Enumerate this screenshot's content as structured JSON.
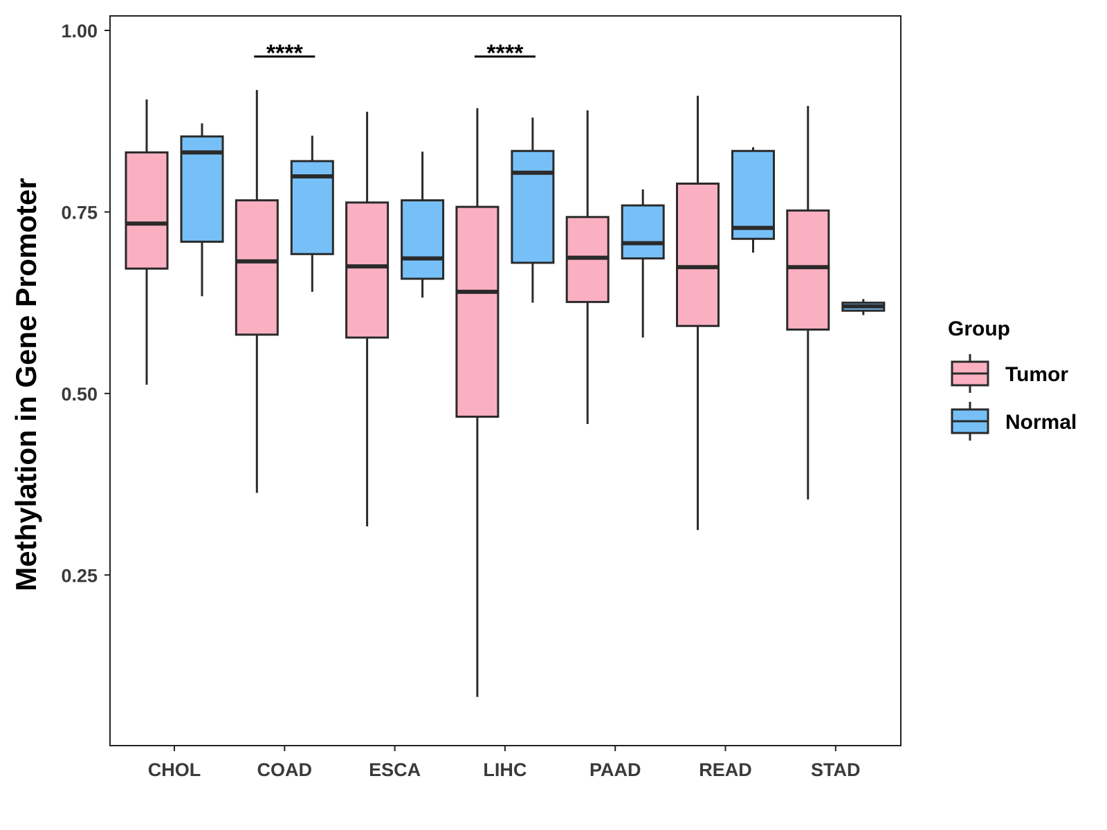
{
  "chart_data": {
    "type": "boxplot",
    "title": "",
    "xlabel": "",
    "ylabel": "Methylation in Gene Promoter",
    "ylim": [
      0.015,
      1.02
    ],
    "yticks": [
      0.25,
      0.5,
      0.75,
      1.0
    ],
    "ytick_labels": [
      "0.25",
      "0.50",
      "0.75",
      "1.00"
    ],
    "categories": [
      "CHOL",
      "COAD",
      "ESCA",
      "LIHC",
      "PAAD",
      "READ",
      "STAD"
    ],
    "legend": {
      "title": "Group",
      "position": "right",
      "entries": [
        {
          "name": "Tumor",
          "color": "#FBB0C2"
        },
        {
          "name": "Normal",
          "color": "#76C0F7"
        }
      ]
    },
    "series": [
      {
        "name": "Tumor",
        "color": "#FBB0C2",
        "boxes": [
          {
            "category": "CHOL",
            "min": 0.512,
            "q1": 0.672,
            "median": 0.734,
            "q3": 0.832,
            "max": 0.905
          },
          {
            "category": "COAD",
            "min": 0.363,
            "q1": 0.581,
            "median": 0.682,
            "q3": 0.766,
            "max": 0.918
          },
          {
            "category": "ESCA",
            "min": 0.317,
            "q1": 0.577,
            "median": 0.675,
            "q3": 0.763,
            "max": 0.888
          },
          {
            "category": "LIHC",
            "min": 0.082,
            "q1": 0.468,
            "median": 0.64,
            "q3": 0.757,
            "max": 0.893
          },
          {
            "category": "PAAD",
            "min": 0.458,
            "q1": 0.626,
            "median": 0.687,
            "q3": 0.743,
            "max": 0.89
          },
          {
            "category": "READ",
            "min": 0.312,
            "q1": 0.593,
            "median": 0.674,
            "q3": 0.789,
            "max": 0.91
          },
          {
            "category": "STAD",
            "min": 0.354,
            "q1": 0.588,
            "median": 0.674,
            "q3": 0.752,
            "max": 0.896
          }
        ]
      },
      {
        "name": "Normal",
        "color": "#76C0F7",
        "boxes": [
          {
            "category": "CHOL",
            "min": 0.634,
            "q1": 0.709,
            "median": 0.832,
            "q3": 0.854,
            "max": 0.872
          },
          {
            "category": "COAD",
            "min": 0.64,
            "q1": 0.692,
            "median": 0.799,
            "q3": 0.82,
            "max": 0.855
          },
          {
            "category": "ESCA",
            "min": 0.632,
            "q1": 0.658,
            "median": 0.686,
            "q3": 0.766,
            "max": 0.833
          },
          {
            "category": "LIHC",
            "min": 0.625,
            "q1": 0.68,
            "median": 0.804,
            "q3": 0.834,
            "max": 0.88
          },
          {
            "category": "PAAD",
            "min": 0.577,
            "q1": 0.686,
            "median": 0.707,
            "q3": 0.759,
            "max": 0.781
          },
          {
            "category": "READ",
            "min": 0.694,
            "q1": 0.713,
            "median": 0.728,
            "q3": 0.834,
            "max": 0.839
          },
          {
            "category": "STAD",
            "min": 0.608,
            "q1": 0.614,
            "median": 0.62,
            "q3": 0.625,
            "max": 0.63
          }
        ]
      }
    ],
    "annotations": [
      {
        "category": "COAD",
        "text": "****",
        "y": 0.964
      },
      {
        "category": "LIHC",
        "text": "****",
        "y": 0.964
      }
    ]
  }
}
